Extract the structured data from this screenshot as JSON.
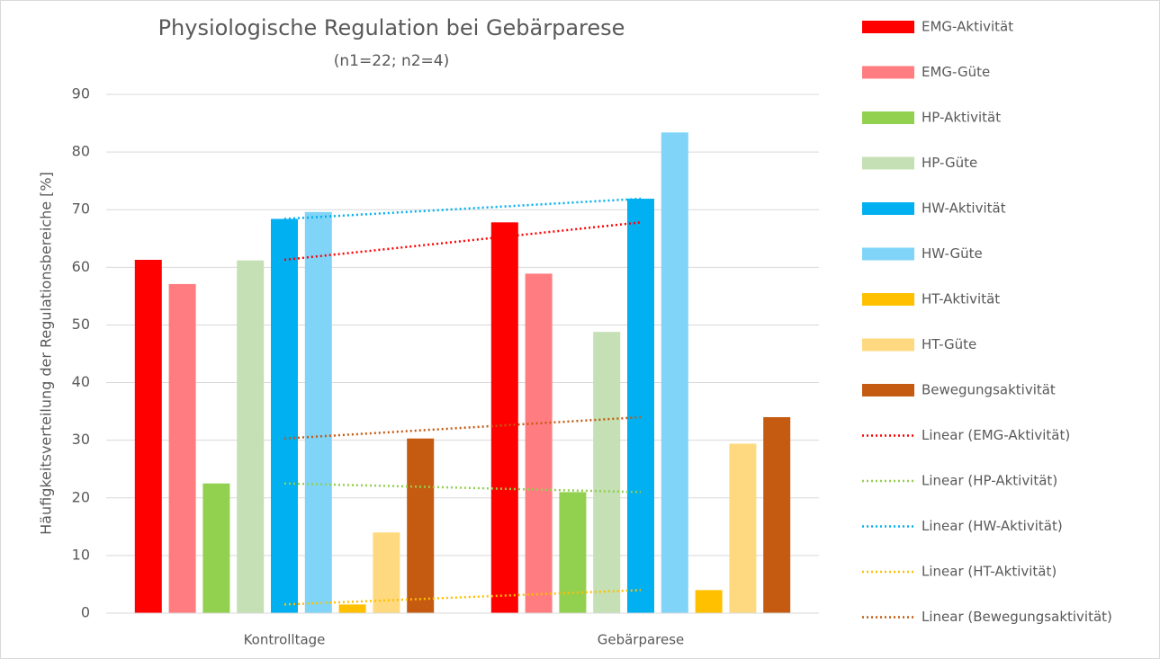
{
  "chart_data": {
    "type": "bar",
    "title": "Physiologische Regulation bei Gebärparese",
    "subtitle": "(n1=22; n2=4)",
    "y_label": "Häufigkeitsverteilung der Regulationsbereiche [%]",
    "categories": [
      "Kontrolltage",
      "Gebärparese"
    ],
    "series": [
      {
        "name": "EMG-Aktivität",
        "color": "#ff0000",
        "values": [
          61.3,
          67.8
        ]
      },
      {
        "name": "EMG-Güte",
        "color": "#ff7c80",
        "values": [
          57.1,
          58.9
        ]
      },
      {
        "name": "HP-Aktivität",
        "color": "#92d050",
        "values": [
          22.5,
          21.0
        ]
      },
      {
        "name": "HP-Güte",
        "color": "#c5e0b4",
        "values": [
          61.2,
          48.8
        ]
      },
      {
        "name": "HW-Aktivität",
        "color": "#00b0f0",
        "values": [
          68.4,
          71.9
        ]
      },
      {
        "name": "HW-Güte",
        "color": "#7fd4f7",
        "values": [
          69.6,
          83.4
        ]
      },
      {
        "name": "HT-Aktivität",
        "color": "#ffc000",
        "values": [
          1.5,
          4.0
        ]
      },
      {
        "name": "HT-Güte",
        "color": "#ffd97f",
        "values": [
          14.0,
          29.4
        ]
      },
      {
        "name": "Bewegungsaktivität",
        "color": "#c55a11",
        "values": [
          30.3,
          34.0
        ]
      }
    ],
    "trendlines": [
      {
        "name": "Linear (EMG-Aktivität)",
        "series": "EMG-Aktivität",
        "color": "#ff0000"
      },
      {
        "name": "Linear (HP-Aktivität)",
        "series": "HP-Aktivität",
        "color": "#92d050"
      },
      {
        "name": "Linear (HW-Aktivität)",
        "series": "HW-Aktivität",
        "color": "#00b0f0"
      },
      {
        "name": "Linear (HT-Aktivität)",
        "series": "HT-Aktivität",
        "color": "#ffc000"
      },
      {
        "name": "Linear (Bewegungsaktivität)",
        "series": "Bewegungsaktivität",
        "color": "#c55a11"
      }
    ],
    "ylim": [
      0,
      90
    ],
    "yticks": [
      0,
      10,
      20,
      30,
      40,
      50,
      60,
      70,
      80,
      90
    ],
    "grid": true,
    "legend": "right"
  }
}
